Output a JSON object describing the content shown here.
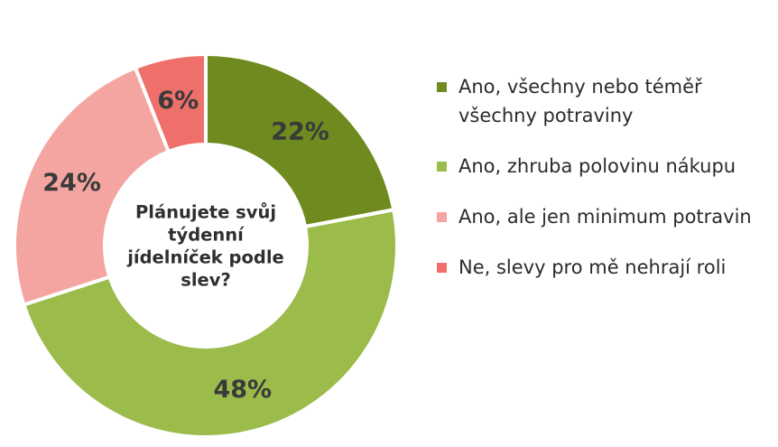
{
  "chart_data": {
    "type": "pie",
    "title": "Plánujete svůj týdenní jídelníček podle slev?",
    "title_lines": [
      "Plánujete svůj",
      "týdenní",
      "jídelníček podle",
      "slev?"
    ],
    "legend_position": "right",
    "slices": [
      {
        "label": "Ano, všechny nebo téměř všechny potraviny",
        "value": 22,
        "display": "22%",
        "color": "#6f8a1f"
      },
      {
        "label": "Ano, zhruba polovinu nákupu",
        "value": 48,
        "display": "48%",
        "color": "#9bbb4b"
      },
      {
        "label": "Ano, ale jen minimum potravin",
        "value": 24,
        "display": "24%",
        "color": "#f4a5a1"
      },
      {
        "label": "Ne, slevy pro mě nehrají roli",
        "value": 6,
        "display": "6%",
        "color": "#ef6f6a"
      }
    ]
  }
}
